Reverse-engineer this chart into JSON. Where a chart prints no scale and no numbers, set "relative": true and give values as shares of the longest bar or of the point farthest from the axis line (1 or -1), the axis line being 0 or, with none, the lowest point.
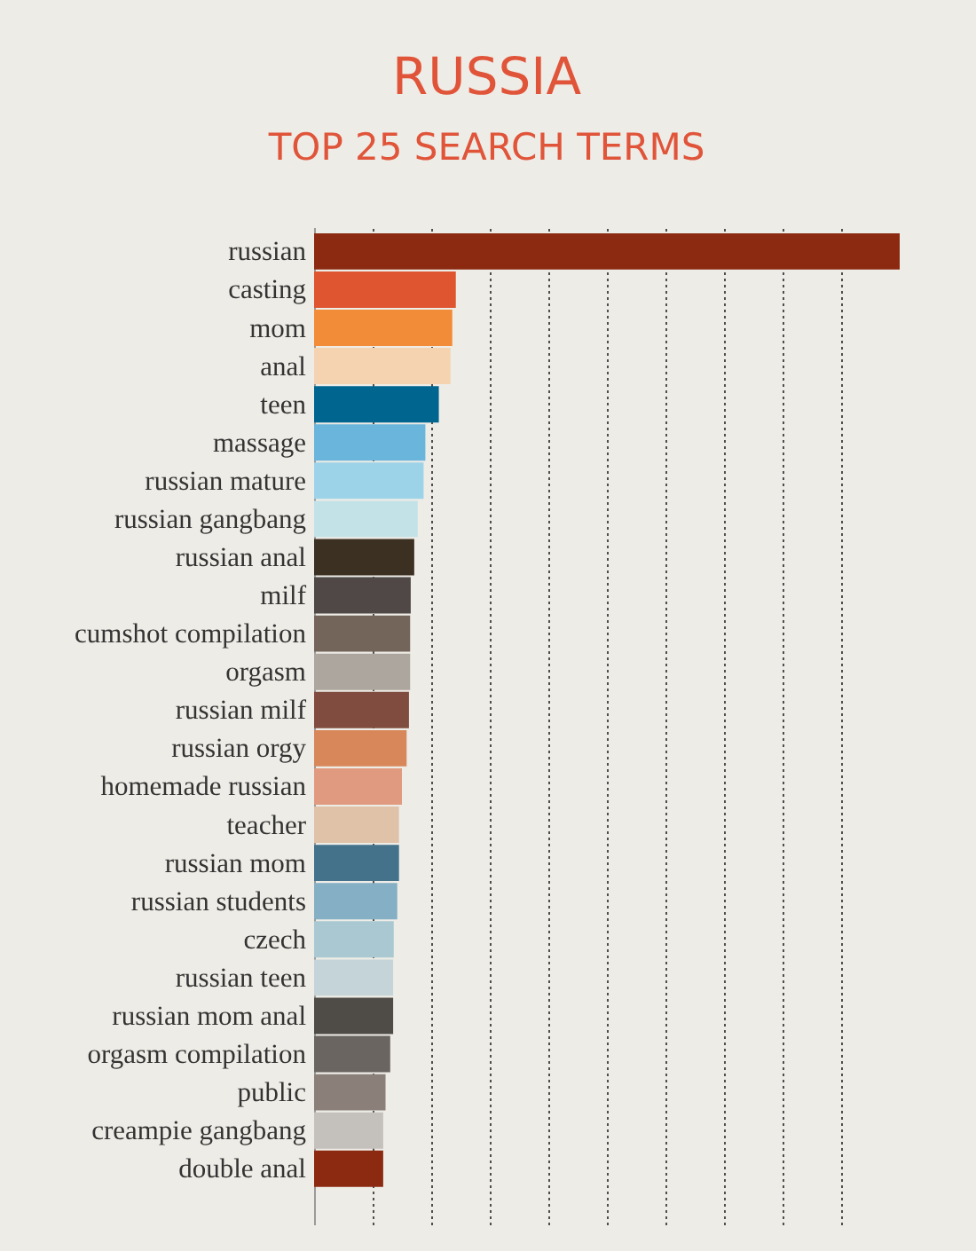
{
  "chart_data": {
    "type": "bar",
    "title": "RUSSIA",
    "subtitle": "TOP 25 SEARCH TERMS",
    "orientation": "horizontal",
    "relative": true,
    "grid": "x",
    "categories": [
      "russian",
      "casting",
      "mom",
      "anal",
      "teen",
      "massage",
      "russian mature",
      "russian gangbang",
      "russian anal",
      "milf",
      "cumshot compilation",
      "orgasm",
      "russian milf",
      "russian orgy",
      "homemade russian",
      "teacher",
      "russian mom",
      "russian students",
      "czech",
      "russian teen",
      "russian mom anal",
      "orgasm compilation",
      "public",
      "creampie gangbang",
      "double anal"
    ],
    "values": [
      1,
      0.242,
      0.236,
      0.233,
      0.213,
      0.19,
      0.187,
      0.177,
      0.171,
      0.165,
      0.164,
      0.164,
      0.162,
      0.158,
      0.15,
      0.145,
      0.145,
      0.142,
      0.136,
      0.135,
      0.135,
      0.13,
      0.122,
      0.118,
      0.118
    ],
    "colors": [
      "#8b2a10",
      "#de5530",
      "#f28c38",
      "#f5d3b0",
      "#006690",
      "#6ab5db",
      "#9dd3e8",
      "#c3e2e8",
      "#3c3022",
      "#4f4846",
      "#74655b",
      "#aca69e",
      "#7f4c3f",
      "#d7875a",
      "#e09a80",
      "#e0c2a8",
      "#43728a",
      "#85afc4",
      "#a9c8d2",
      "#c5d4d8",
      "#4f4c48",
      "#6a6561",
      "#8a7f79",
      "#c4c1bd",
      "#8b2a10"
    ]
  }
}
